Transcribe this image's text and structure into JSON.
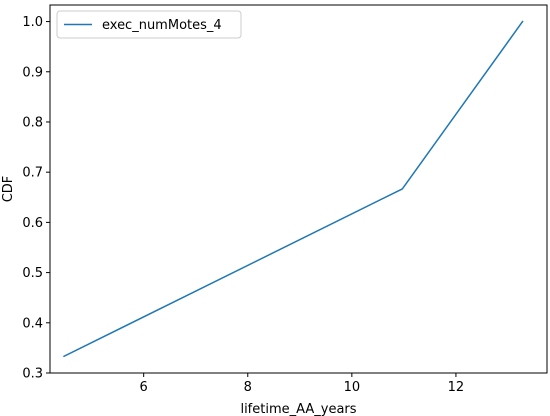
{
  "chart_data": {
    "type": "line",
    "title": "",
    "xlabel": "lifetime_AA_years",
    "ylabel": "CDF",
    "xlim": [
      4.2,
      13.75
    ],
    "ylim": [
      0.3,
      1.033
    ],
    "xticks": [
      6,
      8,
      10,
      12
    ],
    "yticks": [
      0.3,
      0.4,
      0.5,
      0.6,
      0.7,
      0.8,
      0.9,
      1.0
    ],
    "xtick_labels": [
      "6",
      "8",
      "10",
      "12"
    ],
    "ytick_labels": [
      "0.3",
      "0.4",
      "0.5",
      "0.6",
      "0.7",
      "0.8",
      "0.9",
      "1.0"
    ],
    "grid": false,
    "legend_position": "top-left",
    "series": [
      {
        "name": "exec_numMotes_4",
        "color": "#1f77b4",
        "x": [
          4.47,
          10.97,
          13.28
        ],
        "y": [
          0.3333,
          0.6667,
          1.0
        ]
      }
    ]
  }
}
